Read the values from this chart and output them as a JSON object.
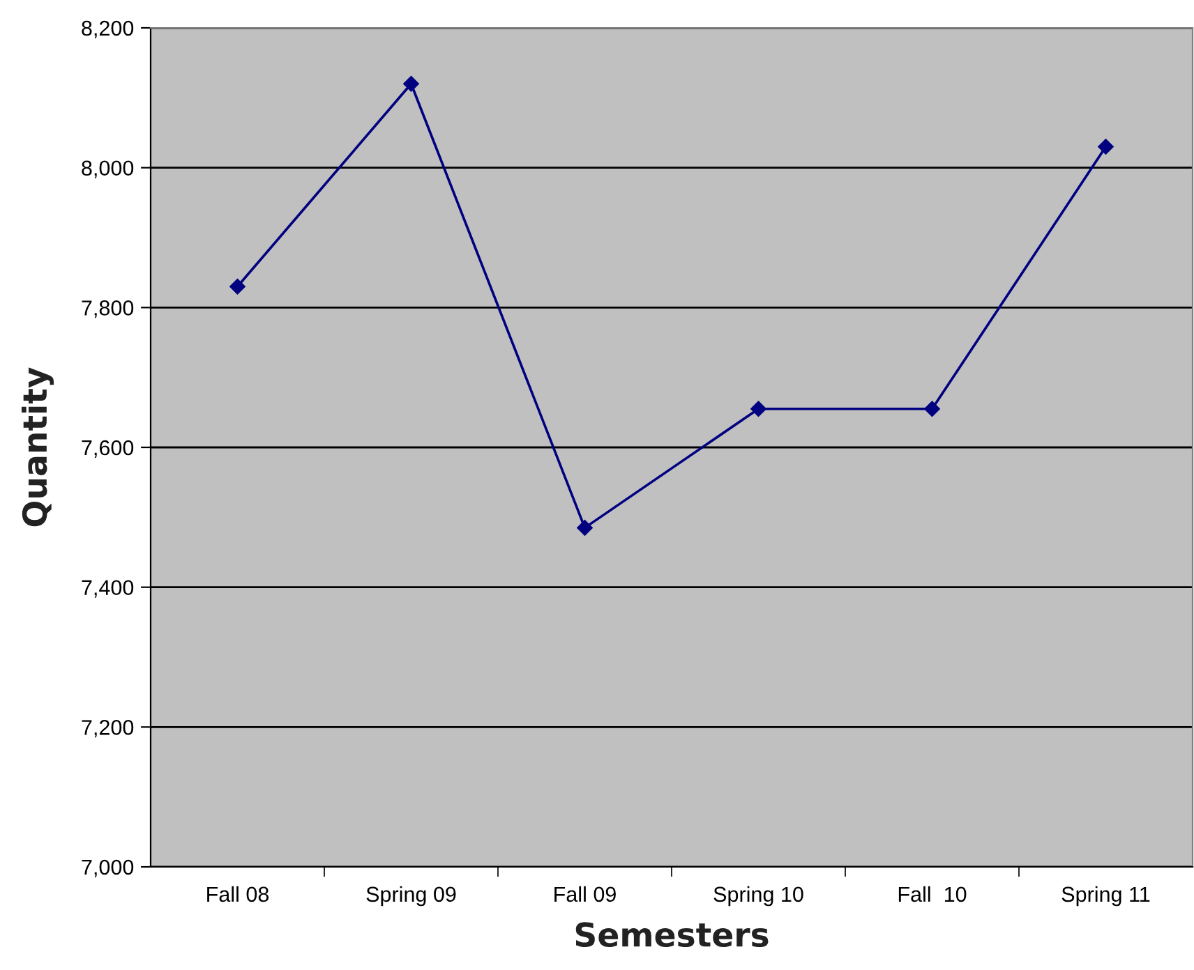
{
  "chart_data": {
    "type": "line",
    "xlabel": "Semesters",
    "ylabel": "Quantity",
    "categories": [
      "Fall 08",
      "Spring 09",
      "Fall 09",
      "Spring 10",
      "Fall  10",
      "Spring 11"
    ],
    "series": [
      {
        "color": "#000080",
        "values": [
          7830,
          8120,
          7485,
          7655,
          7655,
          8030
        ]
      }
    ],
    "ylim": [
      7000,
      8200
    ],
    "yticks": [
      {
        "value": 7000,
        "label": "7,000"
      },
      {
        "value": 7200,
        "label": "7,200"
      },
      {
        "value": 7400,
        "label": "7,400"
      },
      {
        "value": 7600,
        "label": "7,600"
      },
      {
        "value": 7800,
        "label": "7,800"
      },
      {
        "value": 8000,
        "label": "8,000"
      },
      {
        "value": 8200,
        "label": "8,200"
      }
    ],
    "grid": "y",
    "marker": "diamond",
    "line_style": "solid"
  }
}
